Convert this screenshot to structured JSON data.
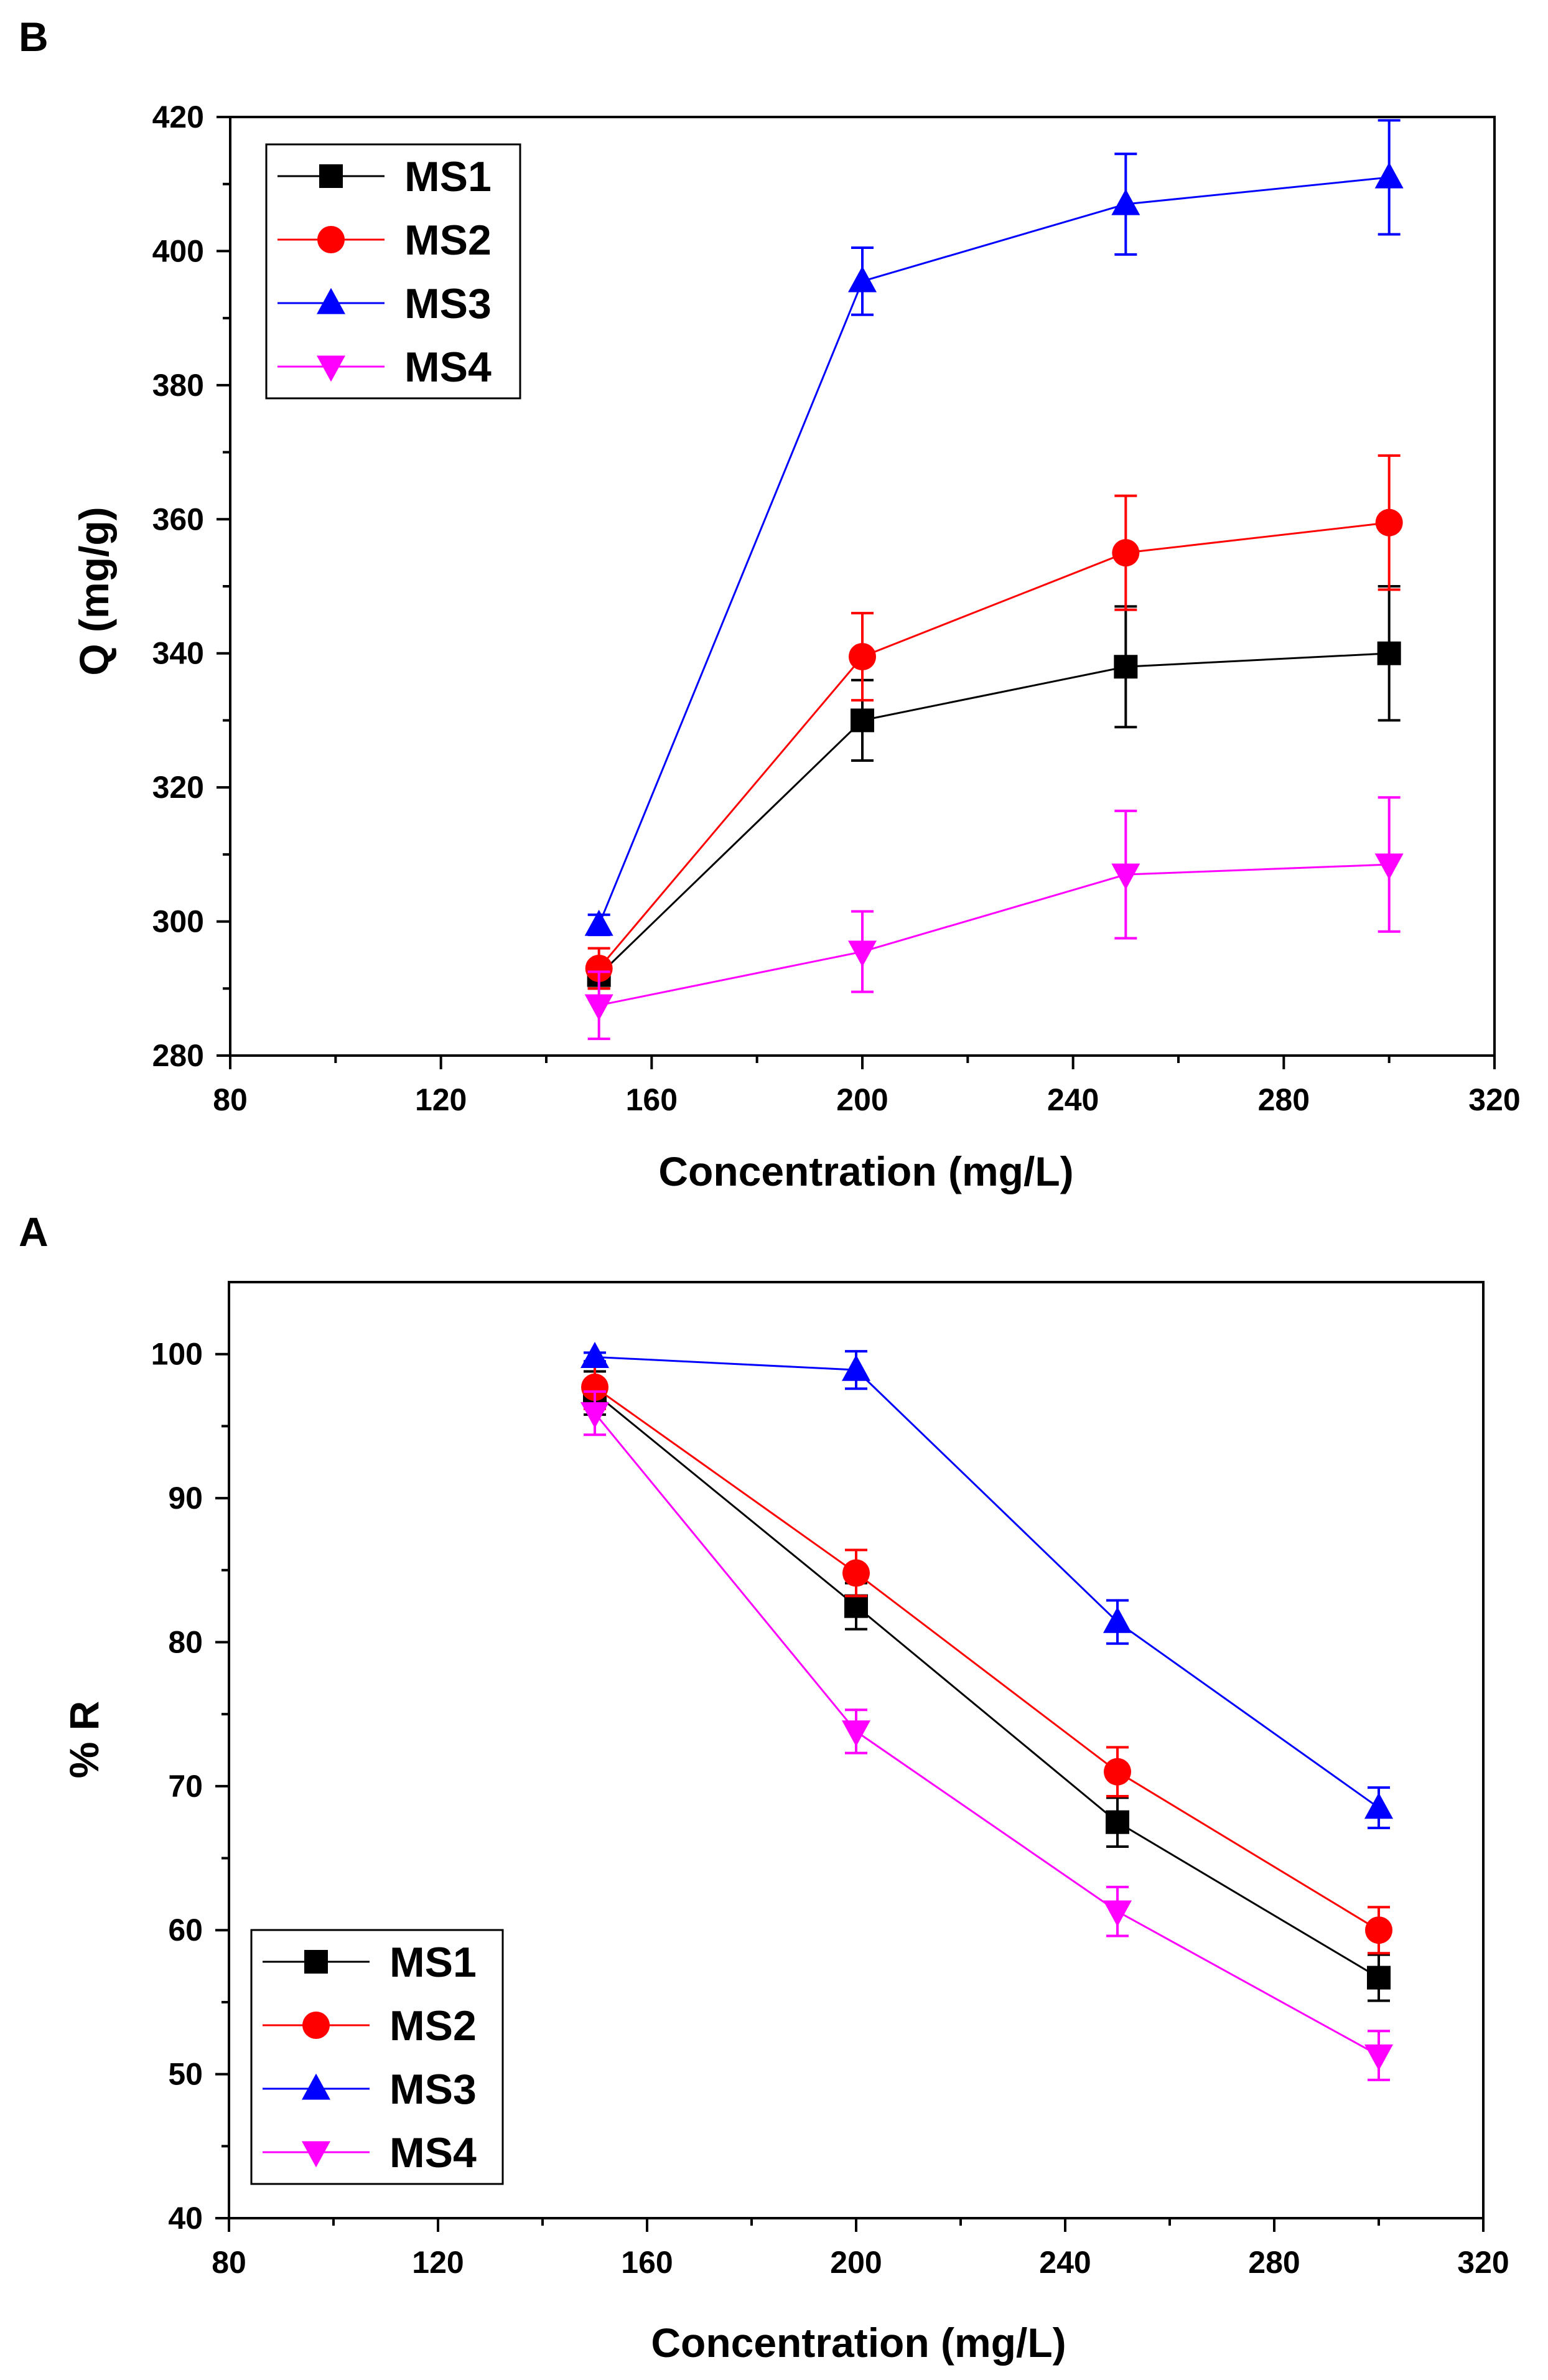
{
  "chart_data": [
    {
      "panel": "B",
      "type": "line",
      "title": "",
      "xlabel": "Concentration (mg/L)",
      "ylabel": "Q (mg/g)",
      "xlim": [
        80,
        320
      ],
      "ylim": [
        280,
        420
      ],
      "xticks": [
        80,
        120,
        160,
        200,
        240,
        280,
        320
      ],
      "yticks": [
        280,
        300,
        320,
        340,
        360,
        380,
        400,
        420
      ],
      "grid": false,
      "legend": "top-left",
      "x": [
        150,
        200,
        250,
        300
      ],
      "series": [
        {
          "name": "MS1",
          "color": "#000000",
          "marker": "square",
          "values": [
            292,
            330,
            338,
            340
          ],
          "err": [
            2,
            6,
            9,
            10
          ]
        },
        {
          "name": "MS2",
          "color": "#ff0000",
          "marker": "circle",
          "values": [
            293,
            339.5,
            355,
            359.5
          ],
          "err": [
            3,
            6.5,
            8.5,
            10
          ]
        },
        {
          "name": "MS3",
          "color": "#0000ff",
          "marker": "triangle-up",
          "values": [
            299.5,
            395.5,
            407,
            411
          ],
          "err": [
            1.5,
            5,
            7.5,
            8.5
          ]
        },
        {
          "name": "MS4",
          "color": "#ff00ff",
          "marker": "triangle-down",
          "values": [
            287.5,
            295.5,
            307,
            308.5
          ],
          "err": [
            5,
            6,
            9.5,
            10
          ]
        }
      ]
    },
    {
      "panel": "A",
      "type": "line",
      "title": "",
      "xlabel": "Concentration (mg/L)",
      "ylabel": "% R",
      "xlim": [
        80,
        320
      ],
      "ylim": [
        40,
        105
      ],
      "xticks": [
        80,
        120,
        160,
        200,
        240,
        280,
        320
      ],
      "yticks": [
        40,
        50,
        60,
        70,
        80,
        90,
        100
      ],
      "grid": false,
      "legend": "bottom-left",
      "x": [
        150,
        200,
        250,
        300
      ],
      "series": [
        {
          "name": "MS1",
          "color": "#000000",
          "marker": "square",
          "values": [
            97.3,
            82.5,
            67.5,
            56.7
          ],
          "err": [
            1.5,
            1.6,
            1.7,
            1.6
          ]
        },
        {
          "name": "MS2",
          "color": "#ff0000",
          "marker": "circle",
          "values": [
            97.7,
            84.8,
            71.0,
            60.0
          ],
          "err": [
            1.5,
            1.6,
            1.7,
            1.6
          ]
        },
        {
          "name": "MS3",
          "color": "#0000ff",
          "marker": "triangle-up",
          "values": [
            99.8,
            98.9,
            81.4,
            68.5
          ],
          "err": [
            0.3,
            1.3,
            1.5,
            1.4
          ]
        },
        {
          "name": "MS4",
          "color": "#ff00ff",
          "marker": "triangle-down",
          "values": [
            95.9,
            73.8,
            61.3,
            51.3
          ],
          "err": [
            1.5,
            1.5,
            1.7,
            1.7
          ]
        }
      ]
    }
  ]
}
